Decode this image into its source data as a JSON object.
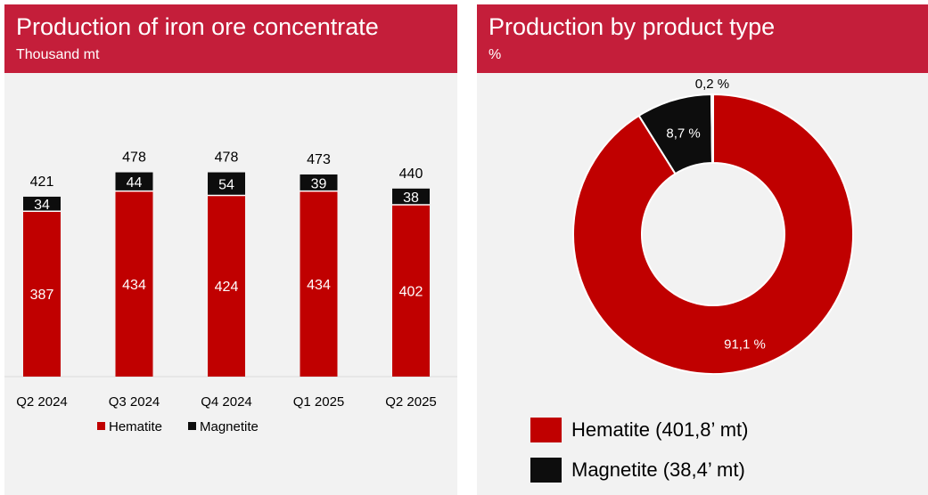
{
  "colors": {
    "banner": "#c41e3a",
    "hematite": "#c00000",
    "magnetite": "#0d0d0d",
    "other": "#d9d9d9"
  },
  "left_panel": {
    "title": "Production of iron ore concentrate",
    "subtitle": "Thousand mt"
  },
  "right_panel": {
    "title": "Production by product type",
    "subtitle": "%"
  },
  "chart_data": [
    {
      "type": "bar",
      "stacked": true,
      "title": "Production of iron ore concentrate",
      "subtitle": "Thousand mt",
      "categories": [
        "Q2 2024",
        "Q3 2024",
        "Q4 2024",
        "Q1 2025",
        "Q2 2025"
      ],
      "series": [
        {
          "name": "Hematite",
          "values": [
            387,
            434,
            424,
            434,
            402
          ]
        },
        {
          "name": "Magnetite",
          "values": [
            34,
            44,
            54,
            39,
            38
          ]
        }
      ],
      "totals": [
        421,
        478,
        478,
        473,
        440
      ],
      "ylim": [
        0,
        500
      ],
      "grid": false,
      "legend": "bottom"
    },
    {
      "type": "pie",
      "donut": true,
      "title": "Production by product type",
      "subtitle": "%",
      "slices": [
        {
          "label": "Hematite",
          "value": 91.1,
          "display": "91,1 %"
        },
        {
          "label": "Magnetite",
          "value": 8.7,
          "display": "8,7 %"
        },
        {
          "label": "",
          "value": 0.2,
          "display": "0,2 %"
        }
      ],
      "legend_entries": [
        "Hematite (401,8’ mt)",
        "Magnetite (38,4’ mt)"
      ],
      "legend": "bottom"
    }
  ]
}
